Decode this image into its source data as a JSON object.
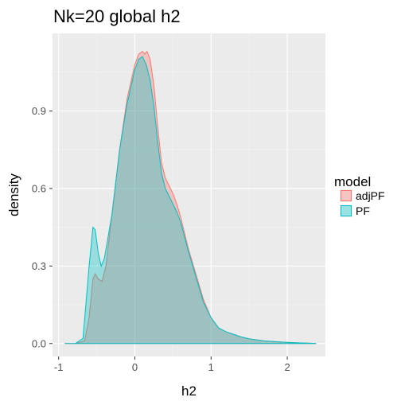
{
  "chart_data": {
    "type": "area",
    "title": "Nk=20 global h2",
    "xlabel": "h2",
    "ylabel": "density",
    "xlim": [
      -1.08,
      2.5
    ],
    "ylim": [
      -0.05,
      1.2
    ],
    "x_ticks": [
      -1,
      0,
      1,
      2
    ],
    "x_tick_labels": [
      "-1",
      "0",
      "1",
      "2"
    ],
    "y_ticks": [
      0.0,
      0.3,
      0.6,
      0.9
    ],
    "y_tick_labels": [
      "0.0",
      "0.3",
      "0.6",
      "0.9"
    ],
    "grid": true,
    "legend": {
      "title": "model",
      "placement": "right"
    },
    "series": [
      {
        "name": "adjPF",
        "line_color": "#F8766D",
        "fill_color": "#F8766D",
        "x": [
          -0.92,
          -0.78,
          -0.66,
          -0.6,
          -0.55,
          -0.52,
          -0.48,
          -0.43,
          -0.38,
          -0.3,
          -0.2,
          -0.1,
          0.0,
          0.05,
          0.1,
          0.13,
          0.16,
          0.2,
          0.25,
          0.3,
          0.35,
          0.4,
          0.5,
          0.55,
          0.6,
          0.7,
          0.8,
          0.9,
          1.0,
          1.1,
          1.2,
          1.3,
          1.4,
          1.5,
          1.7,
          1.9,
          2.1,
          2.3,
          2.38
        ],
        "y": [
          0.0,
          0.0,
          0.01,
          0.1,
          0.25,
          0.27,
          0.25,
          0.24,
          0.3,
          0.5,
          0.75,
          0.95,
          1.08,
          1.12,
          1.13,
          1.12,
          1.13,
          1.1,
          1.0,
          0.84,
          0.7,
          0.64,
          0.58,
          0.54,
          0.49,
          0.37,
          0.27,
          0.17,
          0.1,
          0.06,
          0.045,
          0.035,
          0.025,
          0.018,
          0.01,
          0.006,
          0.003,
          0.001,
          0.0
        ]
      },
      {
        "name": "PF",
        "line_color": "#00BFC4",
        "fill_color": "#00BFC4",
        "x": [
          -0.92,
          -0.78,
          -0.68,
          -0.6,
          -0.55,
          -0.52,
          -0.48,
          -0.44,
          -0.4,
          -0.3,
          -0.2,
          -0.1,
          0.0,
          0.05,
          0.1,
          0.15,
          0.2,
          0.25,
          0.3,
          0.35,
          0.4,
          0.5,
          0.55,
          0.6,
          0.7,
          0.8,
          0.9,
          1.0,
          1.1,
          1.2,
          1.3,
          1.4,
          1.5,
          1.7,
          1.9,
          2.1,
          2.3,
          2.38
        ],
        "y": [
          0.0,
          0.0,
          0.02,
          0.3,
          0.45,
          0.44,
          0.35,
          0.3,
          0.33,
          0.5,
          0.75,
          0.93,
          1.06,
          1.1,
          1.11,
          1.08,
          1.02,
          0.92,
          0.78,
          0.66,
          0.6,
          0.54,
          0.51,
          0.47,
          0.36,
          0.26,
          0.16,
          0.1,
          0.06,
          0.045,
          0.035,
          0.025,
          0.018,
          0.01,
          0.006,
          0.003,
          0.001,
          0.0
        ]
      }
    ]
  }
}
